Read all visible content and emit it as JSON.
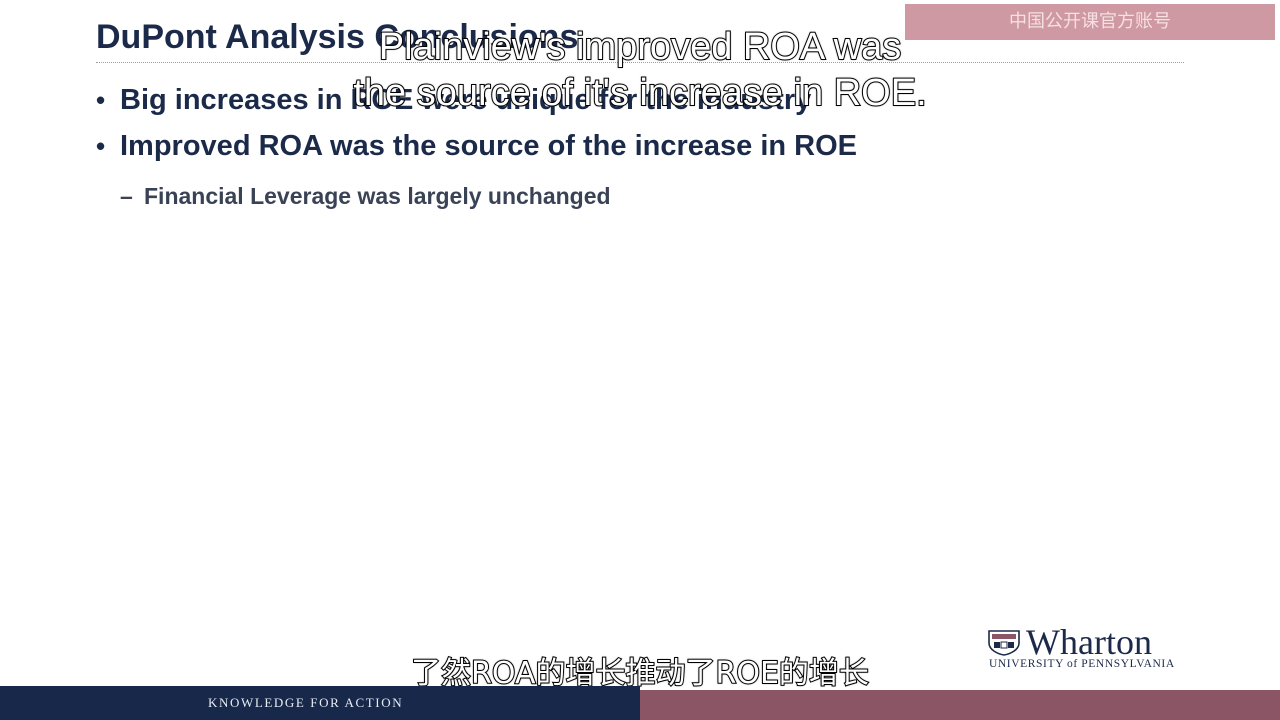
{
  "slide": {
    "title": "DuPont Analysis Conclusions",
    "bullets": [
      "Big increases in ROE were unique for the industry",
      "Improved ROA was the source of the increase in ROE"
    ],
    "sub_bullet": "Financial Leverage was largely unchanged",
    "bullet_symbol": "•",
    "dash_symbol": "–"
  },
  "watermark": {
    "text": "中国公开课官方账号"
  },
  "captions": {
    "english_line1": "Plainview's improved ROA was",
    "english_line2": "the source of it's increase in ROE.",
    "chinese": "了然ROA的增长推动了ROE的增长"
  },
  "logo": {
    "name": "Wharton",
    "subtitle": "UNIVERSITY of PENNSYLVANIA"
  },
  "footer": {
    "tagline": "KNOWLEDGE FOR ACTION"
  },
  "colors": {
    "navy": "#17284a",
    "maroon": "#8c5566",
    "title_text": "#1c2a4a"
  }
}
